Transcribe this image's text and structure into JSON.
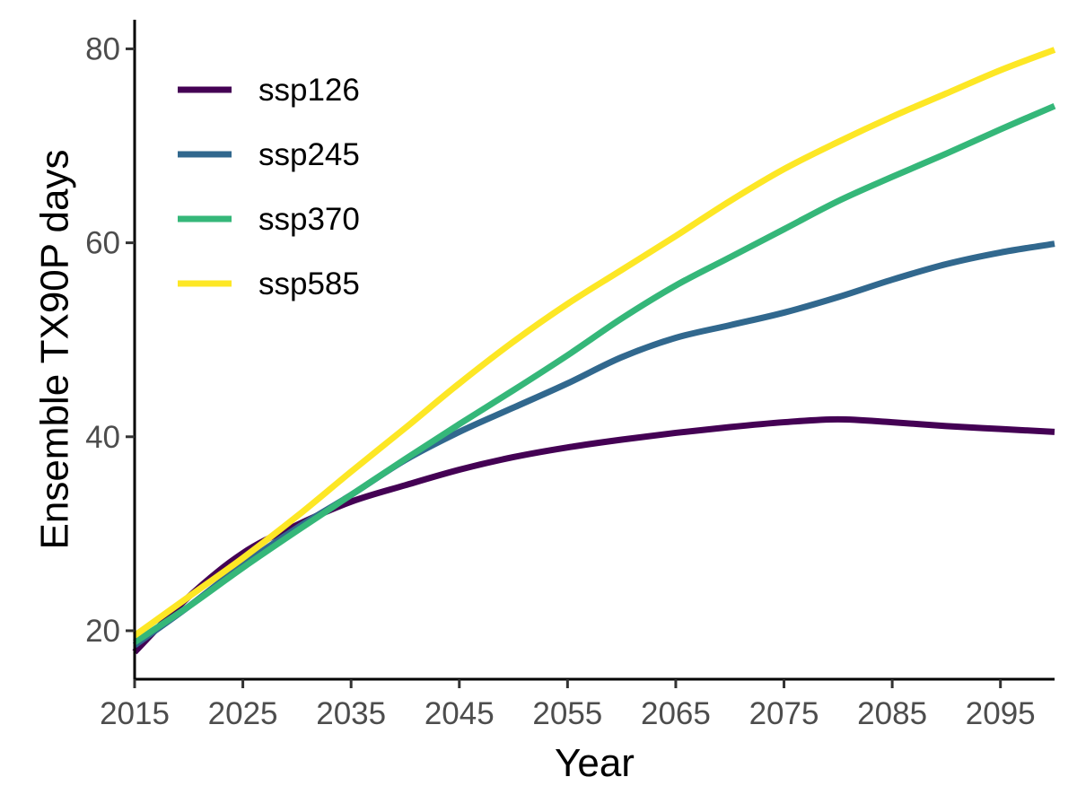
{
  "chart_data": {
    "type": "line",
    "title": "",
    "xlabel": "Year",
    "ylabel": "Ensemble TX90P days",
    "xlim": [
      2015,
      2100
    ],
    "ylim": [
      15,
      83
    ],
    "xticks": [
      2015,
      2025,
      2035,
      2045,
      2055,
      2065,
      2075,
      2085,
      2095
    ],
    "yticks": [
      20,
      40,
      60,
      80
    ],
    "grid": false,
    "legend_position": "top-left",
    "x": [
      2015,
      2020,
      2025,
      2030,
      2035,
      2040,
      2045,
      2050,
      2055,
      2060,
      2065,
      2070,
      2075,
      2080,
      2085,
      2090,
      2095,
      2100
    ],
    "series": [
      {
        "name": "ssp126",
        "color": "#440154",
        "values": [
          17.8,
          23.5,
          28.0,
          30.9,
          33.3,
          35.0,
          36.6,
          37.9,
          38.9,
          39.7,
          40.4,
          41.0,
          41.5,
          41.8,
          41.5,
          41.1,
          40.8,
          40.5
        ]
      },
      {
        "name": "ssp245",
        "color": "#31688e",
        "values": [
          18.5,
          22.5,
          26.8,
          30.6,
          34.0,
          37.6,
          40.5,
          43.0,
          45.5,
          48.2,
          50.2,
          51.5,
          52.8,
          54.4,
          56.2,
          57.8,
          59.0,
          59.9
        ]
      },
      {
        "name": "ssp370",
        "color": "#35b779",
        "values": [
          18.8,
          22.5,
          26.5,
          30.3,
          34.0,
          37.7,
          41.3,
          44.8,
          48.4,
          52.2,
          55.6,
          58.5,
          61.4,
          64.3,
          66.8,
          69.2,
          71.7,
          74.1
        ]
      },
      {
        "name": "ssp585",
        "color": "#fde725",
        "values": [
          19.5,
          23.5,
          27.5,
          31.8,
          36.4,
          40.9,
          45.5,
          49.8,
          53.7,
          57.2,
          60.7,
          64.3,
          67.6,
          70.4,
          73.0,
          75.4,
          77.8,
          79.9
        ]
      }
    ]
  }
}
